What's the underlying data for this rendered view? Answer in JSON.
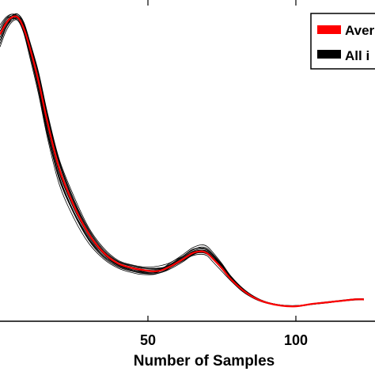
{
  "chart_data": {
    "type": "line",
    "title": "",
    "xlabel": "Number of Samples",
    "ylabel": "",
    "xlim": [
      0,
      123
    ],
    "ylim": [
      0,
      1
    ],
    "xticks": [
      50,
      100
    ],
    "xtick_labels": [
      "50",
      "100"
    ],
    "grid": false,
    "legend": {
      "placement": "top-right",
      "entries": [
        {
          "label": "Aver",
          "color": "#ff0000"
        },
        {
          "label": "All i",
          "color": "#000000"
        }
      ]
    },
    "series": [
      {
        "name": "Aver",
        "color": "#ff0000",
        "x": [
          0,
          2,
          4,
          6,
          8,
          10,
          13,
          16,
          20,
          25,
          30,
          35,
          40,
          45,
          48,
          52,
          55,
          58,
          62,
          65,
          68,
          70,
          72,
          75,
          78,
          82,
          86,
          90,
          95,
          100,
          105,
          110,
          115,
          120,
          123
        ],
        "y": [
          0.92,
          0.955,
          0.975,
          0.975,
          0.94,
          0.88,
          0.77,
          0.64,
          0.49,
          0.37,
          0.28,
          0.22,
          0.185,
          0.17,
          0.165,
          0.16,
          0.165,
          0.178,
          0.2,
          0.218,
          0.224,
          0.218,
          0.2,
          0.17,
          0.135,
          0.1,
          0.075,
          0.06,
          0.05,
          0.048,
          0.055,
          0.06,
          0.065,
          0.07,
          0.07
        ]
      }
    ],
    "all_instances": {
      "name": "All i",
      "color": "#000000",
      "x": [
        0,
        2,
        4,
        6,
        8,
        10,
        13,
        16,
        20,
        25,
        30,
        35,
        40,
        45,
        48,
        52,
        55,
        58,
        62,
        65,
        68,
        70,
        72,
        75,
        78,
        82,
        86,
        90,
        95,
        100,
        105,
        110,
        115,
        120,
        123
      ],
      "y_series": [
        [
          0.9,
          0.945,
          0.97,
          0.97,
          0.93,
          0.86,
          0.74,
          0.6,
          0.46,
          0.35,
          0.27,
          0.21,
          0.18,
          0.165,
          0.16,
          0.16,
          0.17,
          0.19,
          0.21,
          0.23,
          0.235,
          0.23,
          0.21,
          0.175,
          0.14,
          0.1,
          0.075,
          0.06,
          0.05,
          0.05,
          0.055,
          0.06,
          0.065,
          0.07,
          0.07
        ],
        [
          0.93,
          0.96,
          0.98,
          0.985,
          0.96,
          0.9,
          0.8,
          0.67,
          0.52,
          0.4,
          0.3,
          0.235,
          0.195,
          0.18,
          0.175,
          0.175,
          0.18,
          0.19,
          0.215,
          0.235,
          0.245,
          0.24,
          0.22,
          0.185,
          0.145,
          0.105,
          0.078,
          0.062,
          0.052,
          0.05,
          0.054,
          0.058,
          0.064,
          0.068,
          0.068
        ],
        [
          0.88,
          0.93,
          0.96,
          0.965,
          0.925,
          0.85,
          0.73,
          0.59,
          0.44,
          0.33,
          0.25,
          0.2,
          0.17,
          0.155,
          0.15,
          0.15,
          0.16,
          0.175,
          0.195,
          0.21,
          0.215,
          0.21,
          0.19,
          0.16,
          0.13,
          0.095,
          0.072,
          0.058,
          0.05,
          0.049,
          0.056,
          0.062,
          0.067,
          0.072,
          0.072
        ],
        [
          0.94,
          0.97,
          0.985,
          0.975,
          0.95,
          0.89,
          0.79,
          0.66,
          0.51,
          0.385,
          0.29,
          0.225,
          0.19,
          0.175,
          0.17,
          0.17,
          0.172,
          0.183,
          0.205,
          0.222,
          0.228,
          0.222,
          0.205,
          0.172,
          0.138,
          0.1,
          0.076,
          0.061,
          0.051,
          0.05,
          0.055,
          0.06,
          0.066,
          0.07,
          0.07
        ],
        [
          0.91,
          0.95,
          0.975,
          0.98,
          0.945,
          0.875,
          0.76,
          0.625,
          0.475,
          0.36,
          0.275,
          0.215,
          0.18,
          0.165,
          0.158,
          0.155,
          0.158,
          0.17,
          0.192,
          0.212,
          0.222,
          0.22,
          0.205,
          0.175,
          0.14,
          0.102,
          0.077,
          0.06,
          0.05,
          0.047,
          0.053,
          0.059,
          0.064,
          0.069,
          0.069
        ],
        [
          0.89,
          0.94,
          0.965,
          0.97,
          0.94,
          0.87,
          0.755,
          0.615,
          0.465,
          0.35,
          0.265,
          0.21,
          0.178,
          0.162,
          0.157,
          0.156,
          0.163,
          0.18,
          0.202,
          0.22,
          0.228,
          0.225,
          0.206,
          0.174,
          0.138,
          0.1,
          0.075,
          0.06,
          0.05,
          0.048,
          0.055,
          0.06,
          0.066,
          0.071,
          0.071
        ],
        [
          0.95,
          0.975,
          0.985,
          0.98,
          0.955,
          0.895,
          0.795,
          0.665,
          0.515,
          0.39,
          0.295,
          0.23,
          0.192,
          0.178,
          0.172,
          0.168,
          0.17,
          0.18,
          0.198,
          0.215,
          0.222,
          0.218,
          0.2,
          0.168,
          0.134,
          0.098,
          0.074,
          0.06,
          0.051,
          0.049,
          0.054,
          0.059,
          0.065,
          0.069,
          0.069
        ],
        [
          0.92,
          0.955,
          0.975,
          0.97,
          0.935,
          0.865,
          0.745,
          0.605,
          0.455,
          0.345,
          0.26,
          0.205,
          0.175,
          0.16,
          0.155,
          0.155,
          0.165,
          0.185,
          0.21,
          0.228,
          0.235,
          0.23,
          0.212,
          0.18,
          0.143,
          0.104,
          0.078,
          0.062,
          0.052,
          0.05,
          0.055,
          0.06,
          0.065,
          0.07,
          0.07
        ],
        [
          0.9,
          0.94,
          0.97,
          0.975,
          0.95,
          0.885,
          0.78,
          0.645,
          0.495,
          0.375,
          0.285,
          0.22,
          0.185,
          0.17,
          0.166,
          0.165,
          0.168,
          0.178,
          0.198,
          0.215,
          0.22,
          0.215,
          0.198,
          0.167,
          0.133,
          0.097,
          0.073,
          0.059,
          0.05,
          0.048,
          0.054,
          0.059,
          0.064,
          0.069,
          0.069
        ],
        [
          0.93,
          0.965,
          0.98,
          0.975,
          0.94,
          0.875,
          0.765,
          0.63,
          0.48,
          0.365,
          0.28,
          0.218,
          0.182,
          0.168,
          0.162,
          0.162,
          0.167,
          0.182,
          0.205,
          0.224,
          0.232,
          0.228,
          0.21,
          0.178,
          0.142,
          0.103,
          0.077,
          0.061,
          0.051,
          0.049,
          0.055,
          0.06,
          0.065,
          0.07,
          0.07
        ],
        [
          0.91,
          0.95,
          0.97,
          0.965,
          0.93,
          0.86,
          0.745,
          0.61,
          0.46,
          0.345,
          0.262,
          0.206,
          0.174,
          0.16,
          0.154,
          0.152,
          0.158,
          0.174,
          0.196,
          0.214,
          0.222,
          0.218,
          0.2,
          0.17,
          0.136,
          0.099,
          0.075,
          0.06,
          0.05,
          0.048,
          0.054,
          0.059,
          0.064,
          0.069,
          0.069
        ],
        [
          0.94,
          0.97,
          0.98,
          0.985,
          0.955,
          0.895,
          0.79,
          0.655,
          0.505,
          0.38,
          0.29,
          0.226,
          0.19,
          0.175,
          0.17,
          0.168,
          0.172,
          0.185,
          0.208,
          0.228,
          0.238,
          0.234,
          0.215,
          0.182,
          0.145,
          0.106,
          0.079,
          0.062,
          0.052,
          0.05,
          0.055,
          0.06,
          0.066,
          0.07,
          0.07
        ]
      ]
    }
  }
}
